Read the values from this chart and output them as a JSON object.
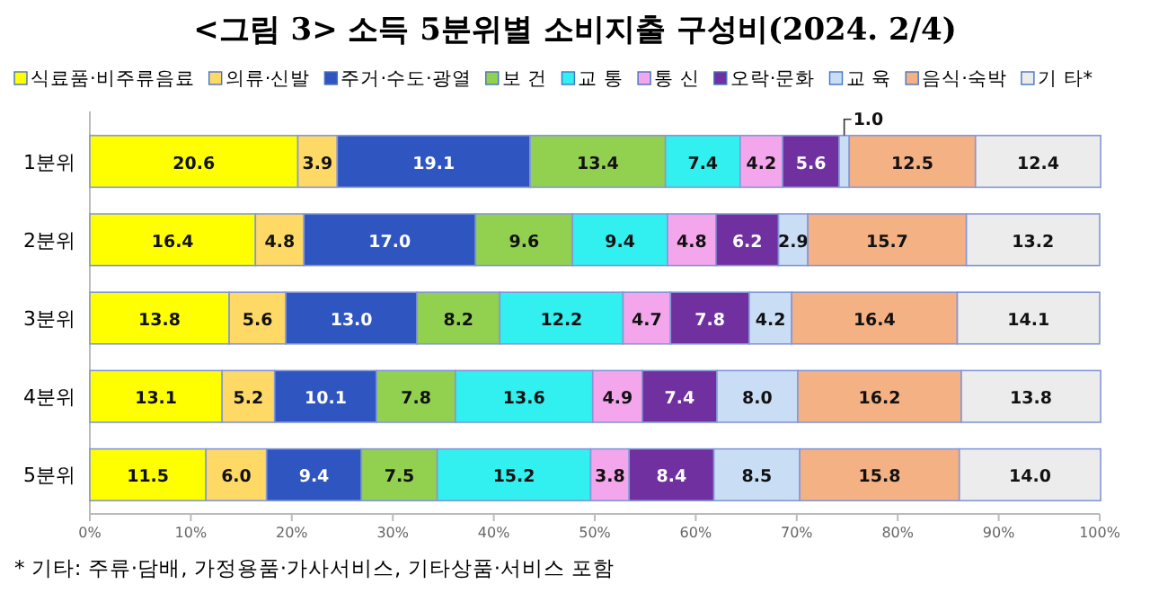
{
  "chart_data": {
    "type": "bar",
    "orientation": "horizontal",
    "stacked": true,
    "title": "<그림 3> 소득 5분위별 소비지출 구성비(2024. 2/4)",
    "categories": [
      "1분위",
      "2분위",
      "3분위",
      "4분위",
      "5분위"
    ],
    "series": [
      {
        "name": "식료품·비주류음료",
        "color": "#ffff00",
        "values": [
          20.6,
          16.4,
          13.8,
          13.1,
          11.5
        ],
        "value_labels": [
          "20.6",
          "16.4",
          "13.8",
          "13.1",
          "11.5"
        ]
      },
      {
        "name": "의류·신발",
        "color": "#ffd966",
        "values": [
          3.9,
          4.8,
          5.6,
          5.2,
          6.0
        ],
        "value_labels": [
          "3.9",
          "4.8",
          "5.6",
          "5.2",
          "6.0"
        ]
      },
      {
        "name": "주거·수도·광열",
        "color": "#2f55c0",
        "values": [
          19.1,
          17.0,
          13.0,
          10.1,
          9.4
        ],
        "value_labels": [
          "19.1",
          "17.0",
          "13.0",
          "10.1",
          "9.4"
        ]
      },
      {
        "name": "보 건",
        "color": "#92d050",
        "values": [
          13.4,
          9.6,
          8.2,
          7.8,
          7.5
        ],
        "value_labels": [
          "13.4",
          "9.6",
          "8.2",
          "7.8",
          "7.5"
        ]
      },
      {
        "name": "교 통",
        "color": "#33f0f0",
        "values": [
          7.4,
          9.4,
          12.2,
          13.6,
          15.2
        ],
        "value_labels": [
          "7.4",
          "9.4",
          "12.2",
          "13.6",
          "15.2"
        ]
      },
      {
        "name": "통 신",
        "color": "#f4a6ec",
        "values": [
          4.2,
          4.8,
          4.7,
          4.9,
          3.8
        ],
        "value_labels": [
          "4.2",
          "4.8",
          "4.7",
          "4.9",
          "3.8"
        ]
      },
      {
        "name": "오락·문화",
        "color": "#7030a0",
        "values": [
          5.6,
          6.2,
          7.8,
          7.4,
          8.4
        ],
        "value_labels": [
          "5.6",
          "6.2",
          "7.8",
          "7.4",
          "8.4"
        ]
      },
      {
        "name": "교 육",
        "color": "#c9def5",
        "values": [
          1.0,
          2.9,
          4.2,
          8.0,
          8.5
        ],
        "value_labels": [
          "1.0",
          "2.9",
          "4.2",
          "8.0",
          "8.5"
        ]
      },
      {
        "name": "음식·숙박",
        "color": "#f4b183",
        "values": [
          12.5,
          15.7,
          16.4,
          16.2,
          15.8
        ],
        "value_labels": [
          "12.5",
          "15.7",
          "16.4",
          "16.2",
          "15.8"
        ]
      },
      {
        "name": "기 타*",
        "color": "#ececec",
        "values": [
          12.4,
          13.2,
          14.1,
          13.8,
          14.0
        ],
        "value_labels": [
          "12.4",
          "13.2",
          "14.1",
          "13.8",
          "14.0"
        ]
      }
    ],
    "xlim": [
      0,
      100
    ],
    "xticks": [
      {
        "value": 0,
        "label": "0%"
      },
      {
        "value": 10,
        "label": "10%"
      },
      {
        "value": 20,
        "label": "20%"
      },
      {
        "value": 30,
        "label": "30%"
      },
      {
        "value": 40,
        "label": "40%"
      },
      {
        "value": 50,
        "label": "50%"
      },
      {
        "value": 60,
        "label": "60%"
      },
      {
        "value": 70,
        "label": "70%"
      },
      {
        "value": 80,
        "label": "80%"
      },
      {
        "value": 90,
        "label": "90%"
      },
      {
        "value": 100,
        "label": "100%"
      }
    ],
    "legend": "top",
    "grid": false,
    "annotations": [
      "* 기타: 주류·담배, 가정용품·가사서비스, 기타상품·서비스 포함"
    ]
  }
}
